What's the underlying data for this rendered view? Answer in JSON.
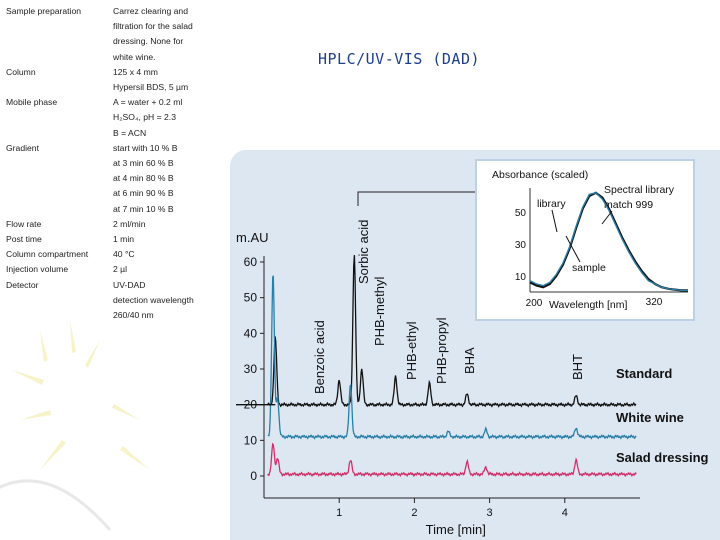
{
  "slide": {
    "title": "HPLC/UV-VIS (DAD)"
  },
  "parameters": [
    {
      "label": "Sample preparation",
      "value": [
        "Carrez clearing and",
        "filtration for the salad",
        "dressing. None for",
        "white wine."
      ]
    },
    {
      "label": "Column",
      "value": [
        "125 x 4 mm",
        "Hypersil BDS, 5 µm"
      ]
    },
    {
      "label": "Mobile phase",
      "value": [
        "A = water + 0.2 ml",
        "H₂SO₄, pH = 2.3",
        "B = ACN"
      ]
    },
    {
      "label": "Gradient",
      "value": [
        "start with 10 % B",
        "at 3 min 60 % B",
        "at 4 min 80 % B",
        "at 6 min 90 % B",
        "at 7 min 10 % B"
      ]
    },
    {
      "label": "Flow rate",
      "value": [
        "2 ml/min"
      ]
    },
    {
      "label": "Post time",
      "value": [
        "1 min"
      ]
    },
    {
      "label": "Column compartment",
      "value": [
        "40 °C"
      ]
    },
    {
      "label": "Injection volume",
      "value": [
        "2 µl"
      ]
    },
    {
      "label": "Detector",
      "value": [
        "UV-DAD",
        "detection wavelength",
        "260/40 nm"
      ]
    }
  ],
  "colors": {
    "standard": "#111111",
    "white_wine": "#2a7fa8",
    "salad_dressing": "#d0306a",
    "library": "#111111",
    "sample": "#2a7fa8",
    "title": "#1f3f8a",
    "panel": "#dde7f2"
  },
  "chart_data": [
    {
      "type": "line",
      "ylabel": "m.AU",
      "xlabel": "Time [min]",
      "xlim": [
        0,
        5
      ],
      "ylim": [
        0,
        60
      ],
      "yticks": [
        0,
        10,
        20,
        30,
        40,
        50,
        60
      ],
      "xticks": [
        1,
        2,
        3,
        4
      ],
      "grid": false,
      "series": [
        {
          "name": "Standard",
          "baseline": 20,
          "peaks": [
            [
              0.15,
              39
            ],
            [
              1.0,
              27
            ],
            [
              1.2,
              62
            ],
            [
              1.3,
              30
            ],
            [
              1.75,
              28
            ],
            [
              2.2,
              26
            ],
            [
              2.7,
              23
            ],
            [
              4.15,
              22.5
            ]
          ]
        },
        {
          "name": "White wine",
          "baseline": 11,
          "peaks": [
            [
              0.12,
              57
            ],
            [
              0.18,
              22
            ],
            [
              1.15,
              26
            ],
            [
              2.45,
              12.5
            ],
            [
              2.95,
              13
            ],
            [
              4.15,
              13.5
            ]
          ]
        },
        {
          "name": "Salad dressing",
          "baseline": 0.5,
          "peaks": [
            [
              0.12,
              9
            ],
            [
              0.18,
              5
            ],
            [
              1.15,
              4.5
            ],
            [
              2.7,
              4
            ],
            [
              2.95,
              2.5
            ],
            [
              4.15,
              4.5
            ]
          ]
        }
      ],
      "peak_labels": [
        {
          "text": "Benzoic acid",
          "x": 1.0
        },
        {
          "text": "Sorbic acid",
          "x": 1.2
        },
        {
          "text": "PHB-methyl",
          "x": 1.3
        },
        {
          "text": "PHB-ethyl",
          "x": 1.75
        },
        {
          "text": "PHB-propyl",
          "x": 2.2
        },
        {
          "text": "BHA",
          "x": 2.7
        },
        {
          "text": "BHT",
          "x": 4.15
        }
      ]
    },
    {
      "type": "line",
      "title": "Absorbance (scaled)",
      "xlabel": "Wavelength [nm]",
      "xlim": [
        200,
        320
      ],
      "ylim": [
        0,
        65
      ],
      "yticks": [
        10,
        30,
        50
      ],
      "xtick_labels": [
        "200",
        "320"
      ],
      "annotations": [
        "Spectral library",
        "match 999"
      ],
      "series": [
        {
          "name": "library",
          "x": [
            200,
            205,
            210,
            215,
            220,
            225,
            230,
            235,
            240,
            245,
            250,
            255,
            260,
            265,
            270,
            275,
            280,
            285,
            290,
            295,
            300,
            305,
            310,
            315,
            320
          ],
          "values": [
            6,
            4,
            3,
            5,
            10,
            17,
            27,
            40,
            52,
            60,
            62,
            59,
            52,
            43,
            34,
            26,
            19,
            13,
            8,
            5,
            3,
            2,
            1.5,
            1,
            1
          ]
        },
        {
          "name": "sample",
          "x": [
            200,
            205,
            210,
            215,
            220,
            225,
            230,
            235,
            240,
            245,
            250,
            255,
            260,
            265,
            270,
            275,
            280,
            285,
            290,
            295,
            300,
            305,
            310,
            315,
            320
          ],
          "values": [
            7,
            5,
            4,
            6,
            11,
            18,
            28,
            41,
            53,
            61,
            62,
            58,
            51,
            42,
            33,
            25,
            18,
            12,
            7,
            5,
            3,
            2,
            1.5,
            1,
            1
          ]
        }
      ]
    }
  ]
}
